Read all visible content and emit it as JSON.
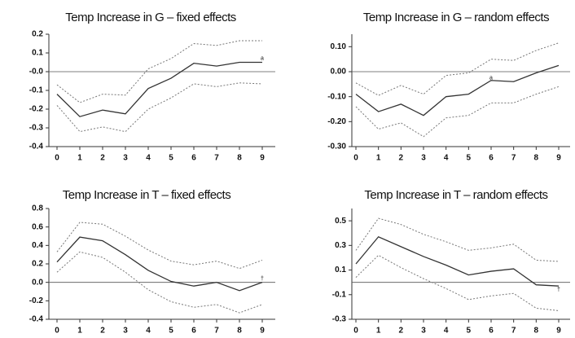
{
  "chart_data": [
    {
      "type": "line",
      "title": "Temp Increase in G – fixed effects",
      "categories": [
        "0",
        "1",
        "2",
        "3",
        "4",
        "5",
        "6",
        "7",
        "8",
        "9"
      ],
      "series": [
        {
          "color": "#333333",
          "dashed": false,
          "values": [
            -0.12,
            -0.24,
            -0.205,
            -0.225,
            -0.09,
            -0.035,
            0.045,
            0.03,
            0.05,
            0.05
          ]
        },
        {
          "color": "#777777",
          "dashed": true,
          "values": [
            -0.07,
            -0.165,
            -0.12,
            -0.125,
            0.015,
            0.07,
            0.15,
            0.14,
            0.165,
            0.165
          ]
        },
        {
          "color": "#777777",
          "dashed": true,
          "values": [
            -0.18,
            -0.32,
            -0.295,
            -0.32,
            -0.2,
            -0.14,
            -0.065,
            -0.08,
            -0.06,
            -0.065
          ]
        }
      ],
      "annotation": {
        "text": "a",
        "x": 9,
        "y": 0.07
      },
      "ylim": [
        -0.4,
        0.2
      ],
      "yticks": [
        0.2,
        0.1,
        {
          "value": 0,
          "label": "-0.0"
        },
        -0.1,
        -0.2,
        -0.3,
        -0.4
      ]
    },
    {
      "type": "line",
      "title": "Temp Increase in G – random effects",
      "categories": [
        "0",
        "1",
        "2",
        "3",
        "4",
        "5",
        "6",
        "7",
        "8",
        "9"
      ],
      "series": [
        {
          "color": "#333333",
          "dashed": false,
          "values": [
            -0.09,
            -0.16,
            -0.13,
            -0.175,
            -0.1,
            -0.09,
            -0.035,
            -0.04,
            -0.005,
            0.025
          ]
        },
        {
          "color": "#777777",
          "dashed": true,
          "values": [
            -0.045,
            -0.095,
            -0.055,
            -0.09,
            -0.015,
            -0.005,
            0.05,
            0.045,
            0.085,
            0.115
          ]
        },
        {
          "color": "#777777",
          "dashed": true,
          "values": [
            -0.14,
            -0.23,
            -0.205,
            -0.26,
            -0.185,
            -0.175,
            -0.125,
            -0.125,
            -0.09,
            -0.06
          ]
        }
      ],
      "annotation": {
        "text": "a",
        "x": 6,
        "y": -0.025
      },
      "ylim": [
        -0.3,
        0.15
      ],
      "yticks": [
        {
          "value": 0.1,
          "label": "0.10"
        },
        {
          "value": 0,
          "label": "0.00"
        },
        {
          "value": -0.1,
          "label": "-0.10"
        },
        {
          "value": -0.2,
          "label": "-0.20"
        },
        {
          "value": -0.3,
          "label": "-0.30"
        }
      ]
    },
    {
      "type": "line",
      "title": "Temp Increase in T – fixed effects",
      "categories": [
        "0",
        "1",
        "2",
        "3",
        "4",
        "5",
        "6",
        "7",
        "8",
        "9"
      ],
      "series": [
        {
          "color": "#333333",
          "dashed": false,
          "values": [
            0.22,
            0.49,
            0.45,
            0.3,
            0.13,
            0.01,
            -0.04,
            0.0,
            -0.09,
            0.0
          ]
        },
        {
          "color": "#777777",
          "dashed": true,
          "values": [
            0.33,
            0.65,
            0.63,
            0.5,
            0.35,
            0.23,
            0.19,
            0.23,
            0.15,
            0.24
          ]
        },
        {
          "color": "#777777",
          "dashed": true,
          "values": [
            0.11,
            0.33,
            0.27,
            0.11,
            -0.08,
            -0.21,
            -0.27,
            -0.24,
            -0.33,
            -0.24
          ]
        }
      ],
      "annotation": {
        "text": "†",
        "x": 9,
        "y": 0.04
      },
      "ylim": [
        -0.4,
        0.8
      ],
      "yticks": [
        0.8,
        0.6,
        0.4,
        0.2,
        {
          "value": 0,
          "label": "0.0"
        },
        -0.2,
        -0.4
      ]
    },
    {
      "type": "line",
      "title": "Temp Increase in T – random effects",
      "categories": [
        "0",
        "1",
        "2",
        "3",
        "4",
        "5",
        "6",
        "7",
        "8",
        "9"
      ],
      "series": [
        {
          "color": "#333333",
          "dashed": false,
          "values": [
            0.15,
            0.37,
            0.29,
            0.21,
            0.14,
            0.06,
            0.09,
            0.11,
            -0.02,
            -0.03
          ]
        },
        {
          "color": "#777777",
          "dashed": true,
          "values": [
            0.26,
            0.52,
            0.47,
            0.39,
            0.33,
            0.26,
            0.28,
            0.31,
            0.18,
            0.17
          ]
        },
        {
          "color": "#777777",
          "dashed": true,
          "values": [
            0.04,
            0.22,
            0.12,
            0.03,
            -0.05,
            -0.14,
            -0.11,
            -0.09,
            -0.21,
            -0.23
          ]
        }
      ],
      "annotation": {
        "text": "†",
        "x": 9,
        "y": -0.06
      },
      "ylim": [
        -0.3,
        0.6
      ],
      "yticks": [
        0.5,
        0.3,
        0.1,
        -0.1,
        -0.3
      ]
    }
  ]
}
